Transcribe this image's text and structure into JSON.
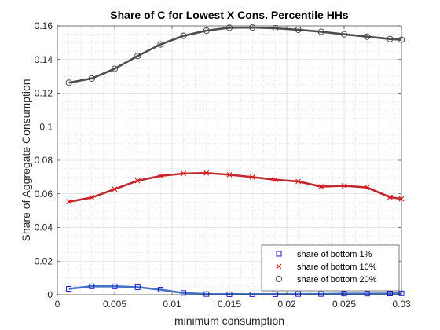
{
  "chart_data": {
    "type": "line",
    "title": "Share of C for Lowest X Cons. Percentile HHs",
    "xlabel": "minimum consumption",
    "ylabel": "Share of Aggregate Consumption",
    "xlim": [
      0,
      0.03
    ],
    "ylim": [
      0,
      0.16
    ],
    "xticks": [
      0,
      0.005,
      0.01,
      0.015,
      0.02,
      0.025,
      0.03
    ],
    "xtick_labels": [
      "0",
      "0.005",
      "0.01",
      "0.015",
      "0.02",
      "0.025",
      "0.03"
    ],
    "yticks": [
      0,
      0.02,
      0.04,
      0.06,
      0.08,
      0.1,
      0.12,
      0.14,
      0.16
    ],
    "ytick_labels": [
      "0",
      "0.02",
      "0.04",
      "0.06",
      "0.08",
      "0.1",
      "0.12",
      "0.14",
      "0.16"
    ],
    "grid": true,
    "minor_grid": true,
    "legend_position": "bottom-right",
    "x": [
      0.001,
      0.003,
      0.005,
      0.007,
      0.009,
      0.011,
      0.013,
      0.015,
      0.017,
      0.019,
      0.021,
      0.023,
      0.025,
      0.027,
      0.029,
      0.03
    ],
    "series": [
      {
        "name": "share of bottom 1%",
        "marker": "square",
        "marker_color": "#0000ff",
        "line_color": "#4472c4",
        "values": [
          0.0035,
          0.005,
          0.005,
          0.0045,
          0.003,
          0.001,
          0.0004,
          0.0003,
          0.0003,
          0.0003,
          0.0004,
          0.0004,
          0.0006,
          0.0006,
          0.0007,
          0.0008
        ]
      },
      {
        "name": "share of bottom 10%",
        "marker": "x",
        "marker_color": "#ff0000",
        "line_color": "#c0282d",
        "values": [
          0.0553,
          0.0578,
          0.0628,
          0.0678,
          0.0707,
          0.0721,
          0.0724,
          0.0714,
          0.07,
          0.0684,
          0.0674,
          0.0643,
          0.0648,
          0.0638,
          0.058,
          0.057
        ]
      },
      {
        "name": "share of bottom 20%",
        "marker": "circle",
        "marker_color": "#404040",
        "line_color": "#4d4d4d",
        "values": [
          0.1262,
          0.1287,
          0.1345,
          0.1421,
          0.149,
          0.1541,
          0.1572,
          0.1589,
          0.159,
          0.1586,
          0.1577,
          0.1565,
          0.155,
          0.1536,
          0.1522,
          0.1518
        ]
      }
    ]
  }
}
